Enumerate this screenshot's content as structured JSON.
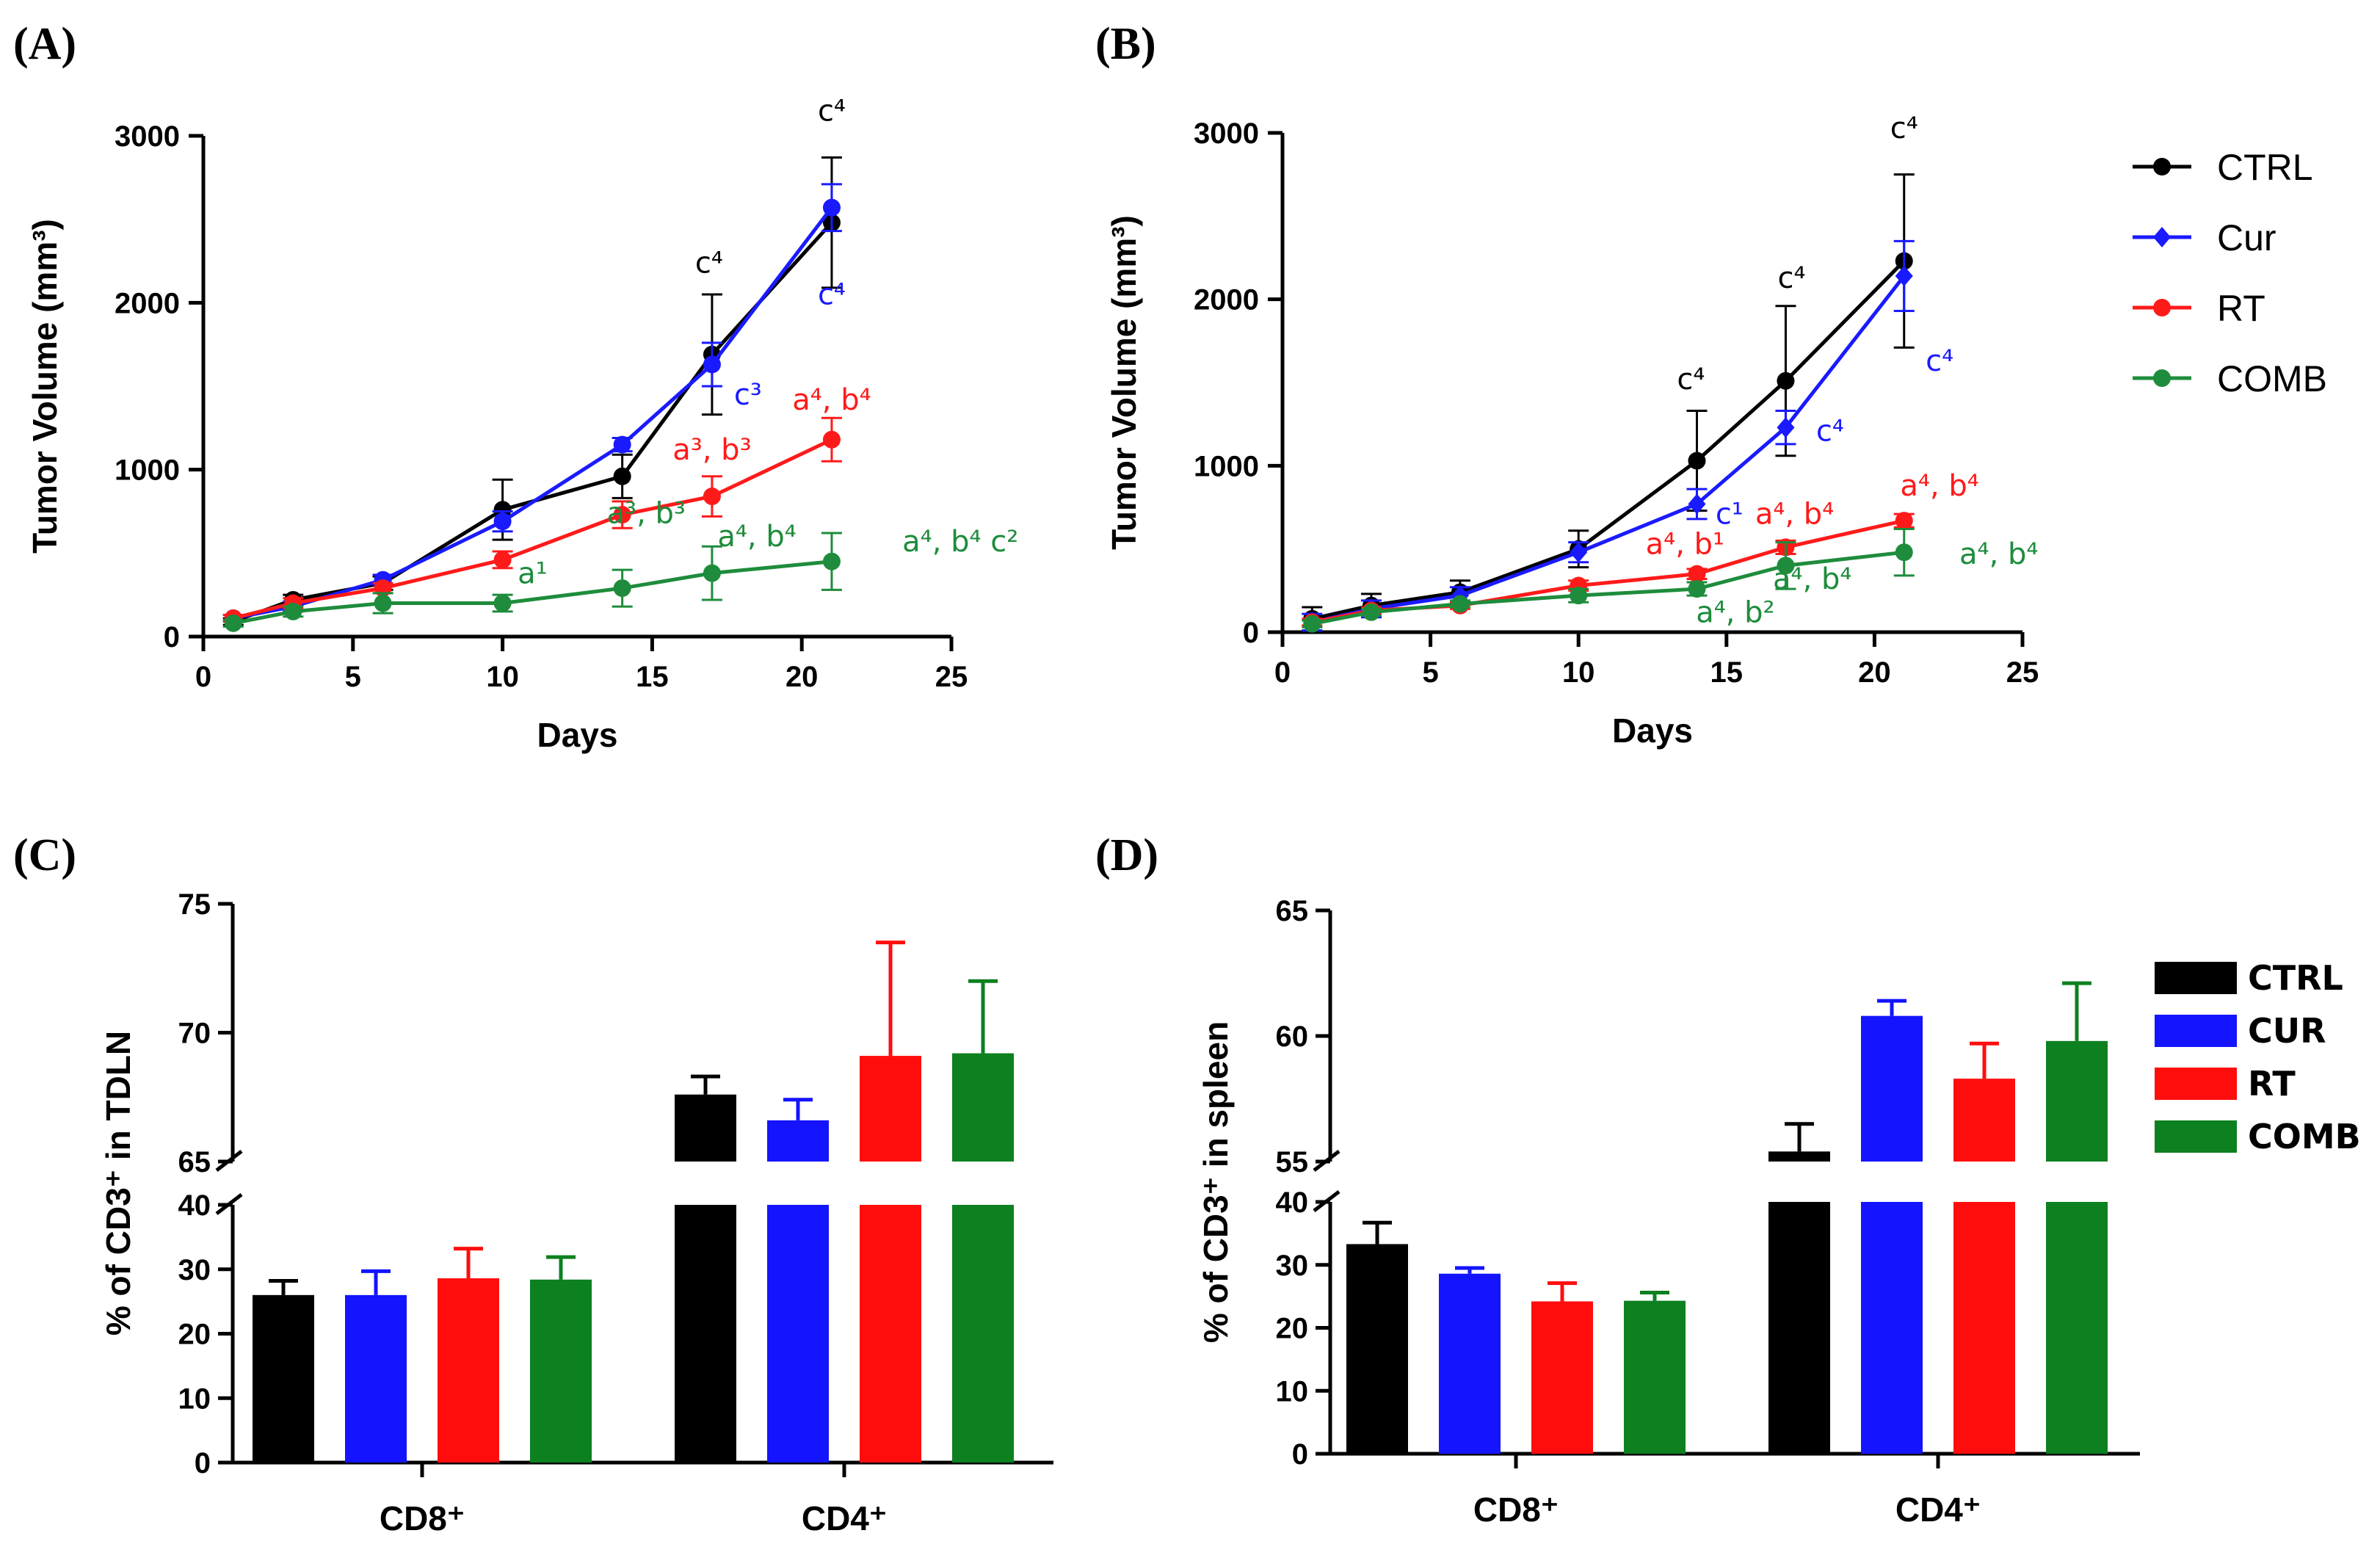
{
  "panel_labels": [
    "(A)",
    "(B)",
    "(C)",
    "(D)"
  ],
  "chart_data": [
    {
      "panel": "(A)",
      "type": "line",
      "xlabel": "Days",
      "ylabel": "Tumor Volume (mm³)",
      "xlim": [
        0,
        25
      ],
      "ylim": [
        0,
        3000
      ],
      "xticks": [
        "0",
        "5",
        "10",
        "15",
        "20",
        "25"
      ],
      "yticks": [
        "0",
        "1000",
        "2000",
        "3000"
      ],
      "x": [
        1,
        3,
        6,
        10,
        14,
        17,
        21
      ],
      "series": [
        {
          "name": "CTRL",
          "color": "#000000",
          "marker": "circle",
          "values": [
            90,
            220,
            320,
            760,
            960,
            1690,
            2480
          ],
          "errors": [
            20,
            30,
            40,
            180,
            130,
            360,
            390
          ]
        },
        {
          "name": "Cur",
          "color": "#1a1aff",
          "marker": "circle",
          "values": [
            110,
            180,
            340,
            690,
            1150,
            1630,
            2570
          ],
          "errors": [
            20,
            30,
            30,
            60,
            40,
            130,
            140
          ]
        },
        {
          "name": "RT",
          "color": "#ff1a1a",
          "marker": "circle",
          "values": [
            110,
            200,
            290,
            460,
            730,
            840,
            1180
          ],
          "errors": [
            20,
            30,
            30,
            50,
            80,
            120,
            130
          ]
        },
        {
          "name": "COMB",
          "color": "#1e8c3c",
          "marker": "circle",
          "values": [
            80,
            150,
            200,
            200,
            290,
            380,
            450
          ],
          "errors": [
            20,
            30,
            60,
            50,
            110,
            160,
            170
          ]
        }
      ],
      "annotations": [
        {
          "text": "c⁴",
          "color": "#000000",
          "x": 21,
          "y": 3090
        },
        {
          "text": "c⁴",
          "color": "#1a1aff",
          "x": 21,
          "y": 1990
        },
        {
          "text": "c⁴",
          "color": "#000000",
          "x": 16.9,
          "y": 2180
        },
        {
          "text": "c³",
          "color": "#1a1aff",
          "x": 18.2,
          "y": 1390
        },
        {
          "text": "a⁴, b⁴",
          "color": "#ff1a1a",
          "x": 21,
          "y": 1360
        },
        {
          "text": "a³, b³",
          "color": "#ff1a1a",
          "x": 17,
          "y": 1060
        },
        {
          "text": "a¹",
          "color": "#1e8c3c",
          "x": 11,
          "y": 320
        },
        {
          "text": "a³, b³",
          "color": "#1e8c3c",
          "x": 14.8,
          "y": 680
        },
        {
          "text": "a⁴, b⁴",
          "color": "#1e8c3c",
          "x": 18.5,
          "y": 540
        },
        {
          "text": "a⁴, b⁴ c²",
          "color": "#1e8c3c",
          "x": 25.3,
          "y": 510
        }
      ]
    },
    {
      "panel": "(B)",
      "type": "line",
      "xlabel": "Days",
      "ylabel": "Tumor Volume (mm³)",
      "xlim": [
        0,
        25
      ],
      "ylim": [
        0,
        3000
      ],
      "xticks": [
        "0",
        "5",
        "10",
        "15",
        "20",
        "25"
      ],
      "yticks": [
        "0",
        "1000",
        "2000",
        "3000"
      ],
      "x": [
        1,
        3,
        6,
        10,
        14,
        17,
        21
      ],
      "series": [
        {
          "name": "CTRL",
          "color": "#000000",
          "marker": "circle",
          "values": [
            80,
            160,
            240,
            500,
            1030,
            1510,
            2230
          ],
          "errors": [
            70,
            70,
            70,
            110,
            300,
            450,
            520
          ]
        },
        {
          "name": "Cur",
          "color": "#1a1aff",
          "marker": "diamond",
          "values": [
            60,
            140,
            220,
            480,
            770,
            1230,
            2140
          ],
          "errors": [
            50,
            50,
            50,
            60,
            90,
            100,
            210
          ]
        },
        {
          "name": "RT",
          "color": "#ff1a1a",
          "marker": "circle",
          "values": [
            60,
            130,
            160,
            280,
            350,
            510,
            670
          ],
          "errors": [
            20,
            20,
            20,
            30,
            30,
            40,
            40
          ]
        },
        {
          "name": "COMB",
          "color": "#1e8c3c",
          "marker": "circle",
          "values": [
            50,
            120,
            170,
            220,
            260,
            400,
            480
          ],
          "errors": [
            20,
            20,
            20,
            40,
            40,
            140,
            140
          ]
        }
      ],
      "annotations": [
        {
          "text": "c⁴",
          "color": "#000000",
          "x": 21,
          "y": 2970
        },
        {
          "text": "c⁴",
          "color": "#1a1aff",
          "x": 22.2,
          "y": 1570
        },
        {
          "text": "c⁴",
          "color": "#000000",
          "x": 17.2,
          "y": 2070
        },
        {
          "text": "c⁴",
          "color": "#1a1aff",
          "x": 18.5,
          "y": 1150
        },
        {
          "text": "c⁴",
          "color": "#000000",
          "x": 13.8,
          "y": 1460
        },
        {
          "text": "c¹",
          "color": "#1a1aff",
          "x": 15.1,
          "y": 650
        },
        {
          "text": "a⁴, b⁴",
          "color": "#ff1a1a",
          "x": 22.2,
          "y": 820
        },
        {
          "text": "a⁴, b⁴",
          "color": "#ff1a1a",
          "x": 17.3,
          "y": 650
        },
        {
          "text": "a⁴, b¹",
          "color": "#ff1a1a",
          "x": 13.6,
          "y": 470
        },
        {
          "text": "a⁴, b⁴",
          "color": "#1e8c3c",
          "x": 24.2,
          "y": 410
        },
        {
          "text": "a⁴, b⁴",
          "color": "#1e8c3c",
          "x": 17.9,
          "y": 260
        },
        {
          "text": "a⁴, b²",
          "color": "#1e8c3c",
          "x": 15.3,
          "y": 60
        }
      ]
    },
    {
      "panel": "(C)",
      "type": "bar",
      "ylabel": "% of CD3⁺ in TDLN",
      "categories": [
        "CD8⁺",
        "CD4⁺"
      ],
      "yticks_lower": [
        "0",
        "10",
        "20",
        "30",
        "40"
      ],
      "yticks_upper": [
        "65",
        "70",
        "75"
      ],
      "ylim_lower": [
        0,
        40
      ],
      "ylim_upper": [
        65,
        75
      ],
      "series": [
        {
          "name": "CTRL",
          "color": "#000000",
          "values": [
            26,
            67.6
          ],
          "errors": [
            2.2,
            0.7
          ]
        },
        {
          "name": "CUR",
          "color": "#1414ff",
          "values": [
            26,
            66.6
          ],
          "errors": [
            3.7,
            0.8
          ]
        },
        {
          "name": "RT",
          "color": "#ff0d0d",
          "values": [
            28.6,
            69.1
          ],
          "errors": [
            4.6,
            4.4
          ]
        },
        {
          "name": "COMB",
          "color": "#0d8020",
          "values": [
            28.4,
            69.2
          ],
          "errors": [
            3.5,
            2.8
          ]
        }
      ]
    },
    {
      "panel": "(D)",
      "type": "bar",
      "ylabel": "% of CD3⁺ in spleen",
      "categories": [
        "CD8⁺",
        "CD4⁺"
      ],
      "yticks_lower": [
        "0",
        "10",
        "20",
        "30",
        "40"
      ],
      "yticks_upper": [
        "55",
        "60",
        "65"
      ],
      "ylim_lower": [
        0,
        40
      ],
      "ylim_upper": [
        55,
        65
      ],
      "series": [
        {
          "name": "CTRL",
          "color": "#000000",
          "values": [
            33.3,
            55.4
          ],
          "errors": [
            3.4,
            1.1
          ]
        },
        {
          "name": "CUR",
          "color": "#1414ff",
          "values": [
            28.6,
            60.8
          ],
          "errors": [
            0.9,
            0.6
          ]
        },
        {
          "name": "RT",
          "color": "#ff0d0d",
          "values": [
            24.2,
            58.3
          ],
          "errors": [
            2.9,
            1.4
          ]
        },
        {
          "name": "COMB",
          "color": "#0d8020",
          "values": [
            24.3,
            59.8
          ],
          "errors": [
            1.3,
            2.3
          ]
        }
      ]
    }
  ],
  "legend_top": [
    "CTRL",
    "Cur",
    "RT",
    "COMB"
  ],
  "legend_bottom": [
    "CTRL",
    "CUR",
    "RT",
    "COMB"
  ]
}
